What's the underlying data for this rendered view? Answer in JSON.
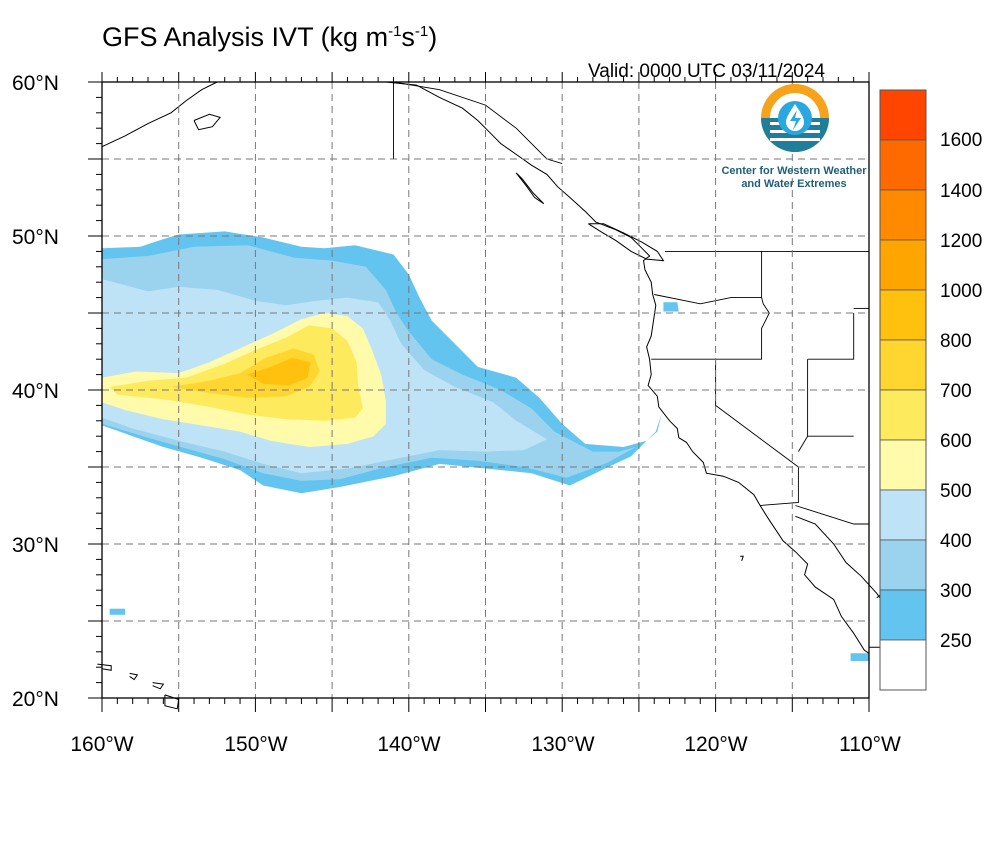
{
  "title": {
    "main": "GFS Analysis IVT (kg m",
    "sup1": "-1",
    "mid": "s",
    "sup2": "-1",
    "end": ")"
  },
  "valid_time": "Valid: 0000 UTC 03/11/2024",
  "logo": {
    "line1": "Center for Western Weather",
    "line2": "and Water Extremes",
    "icon": "water-drop-sun-icon"
  },
  "latitude_labels": [
    "60°N",
    "50°N",
    "40°N",
    "30°N",
    "20°N"
  ],
  "longitude_labels": [
    "160°W",
    "150°W",
    "140°W",
    "130°W",
    "120°W",
    "110°W"
  ],
  "colorbar": {
    "labels": [
      "1600",
      "1400",
      "1200",
      "1000",
      "800",
      "700",
      "600",
      "500",
      "400",
      "300",
      "250"
    ],
    "colors": [
      "#ff4500",
      "#ff6a00",
      "#ff8a00",
      "#ffa500",
      "#ffc10e",
      "#ffd630",
      "#fdea5d",
      "#fffbaa",
      "#bfe3f6",
      "#9bd3ef",
      "#62c4ef",
      "#ffffff"
    ]
  },
  "map_data": {
    "lon_range": [
      -160,
      -110
    ],
    "lat_range": [
      20,
      60
    ],
    "grid_spacing_lon": 5,
    "grid_spacing_lat": 5,
    "ivt_field_note": "Atmospheric river extending from ~158W to ~122W between 33N and 50N; core 700-800 near 147W 41N"
  }
}
